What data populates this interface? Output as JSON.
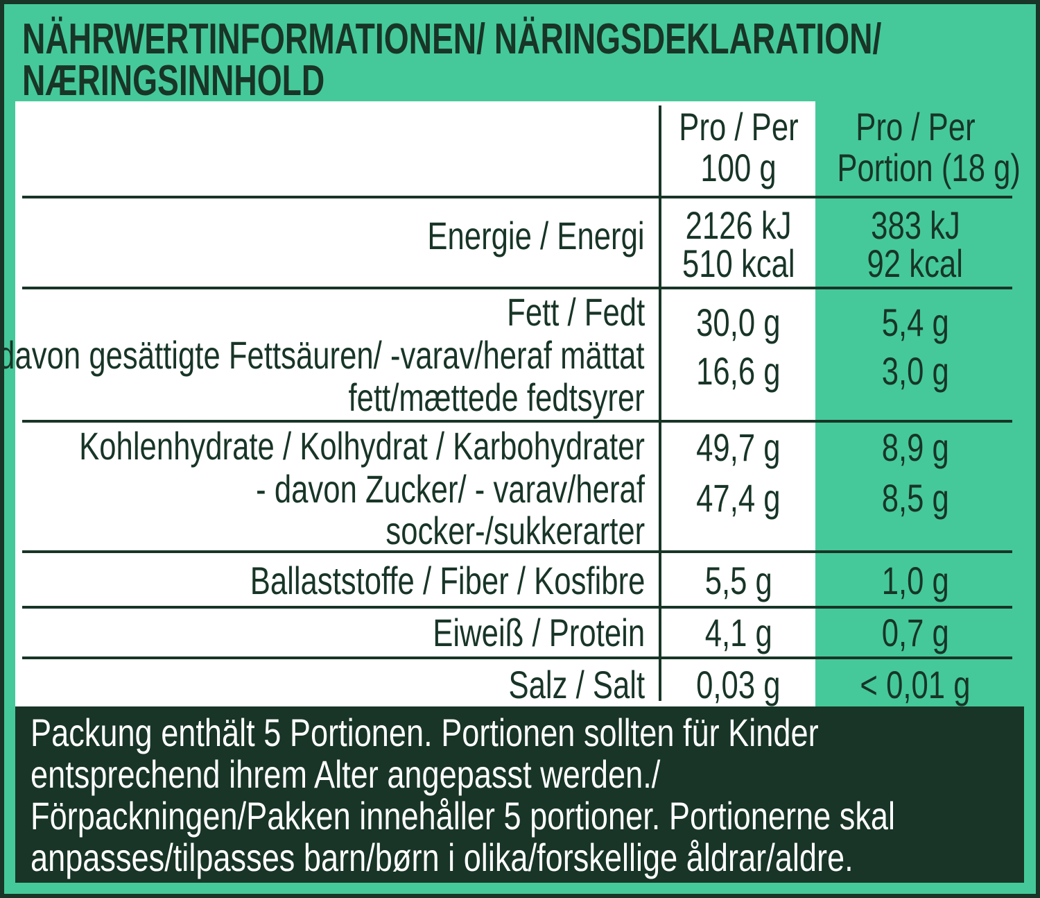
{
  "title": {
    "line1": "NÄHRWERTINFORMATIONEN/ NÄRINGSDEKLARATION/",
    "line2": "NÆRINGSINNHOLD"
  },
  "colors": {
    "green": "#45c99a",
    "dark": "#183527",
    "white": "#ffffff"
  },
  "header": {
    "col1": [
      "Pro / Per",
      "100 g"
    ],
    "col2": [
      "Pro / Per",
      "Portion (18 g)"
    ]
  },
  "rows": {
    "energy": {
      "label": [
        "Energie / Energi"
      ],
      "per100": [
        "2126 kJ",
        "510 kcal"
      ],
      "portion": [
        "383 kJ",
        "92 kcal"
      ]
    },
    "fat": {
      "label": [
        "Fett / Fedt",
        "- davon gesättigte Fettsäuren/ -varav/heraf mättat",
        "fett/mættede fedtsyrer"
      ],
      "per100": [
        "30,0 g",
        "16,6 g"
      ],
      "portion": [
        "5,4 g",
        "3,0 g"
      ]
    },
    "carbs": {
      "label": [
        "Kohlenhydrate / Kolhydrat / Karbohydrater",
        "- davon Zucker/ - varav/heraf",
        "socker-/sukkerarter"
      ],
      "per100": [
        "49,7 g",
        "47,4 g"
      ],
      "portion": [
        "8,9 g",
        "8,5 g"
      ]
    },
    "fiber": {
      "label": [
        "Ballaststoffe / Fiber / Kosfibre"
      ],
      "per100": [
        "5,5 g"
      ],
      "portion": [
        "1,0 g"
      ]
    },
    "protein": {
      "label": [
        "Eiweiß / Protein"
      ],
      "per100": [
        "4,1 g"
      ],
      "portion": [
        "0,7 g"
      ]
    },
    "salt": {
      "label": [
        "Salz / Salt"
      ],
      "per100": [
        "0,03 g"
      ],
      "portion": [
        "< 0,01 g"
      ]
    }
  },
  "footer": [
    "Packung enthält 5 Portionen. Portionen sollten für Kinder",
    "entsprechend ihrem Alter angepasst werden./",
    "Förpackningen/Pakken innehåller 5 portioner. Portionerne skal",
    "anpasses/tilpasses barn/børn i olika/forskellige åldrar/aldre."
  ]
}
